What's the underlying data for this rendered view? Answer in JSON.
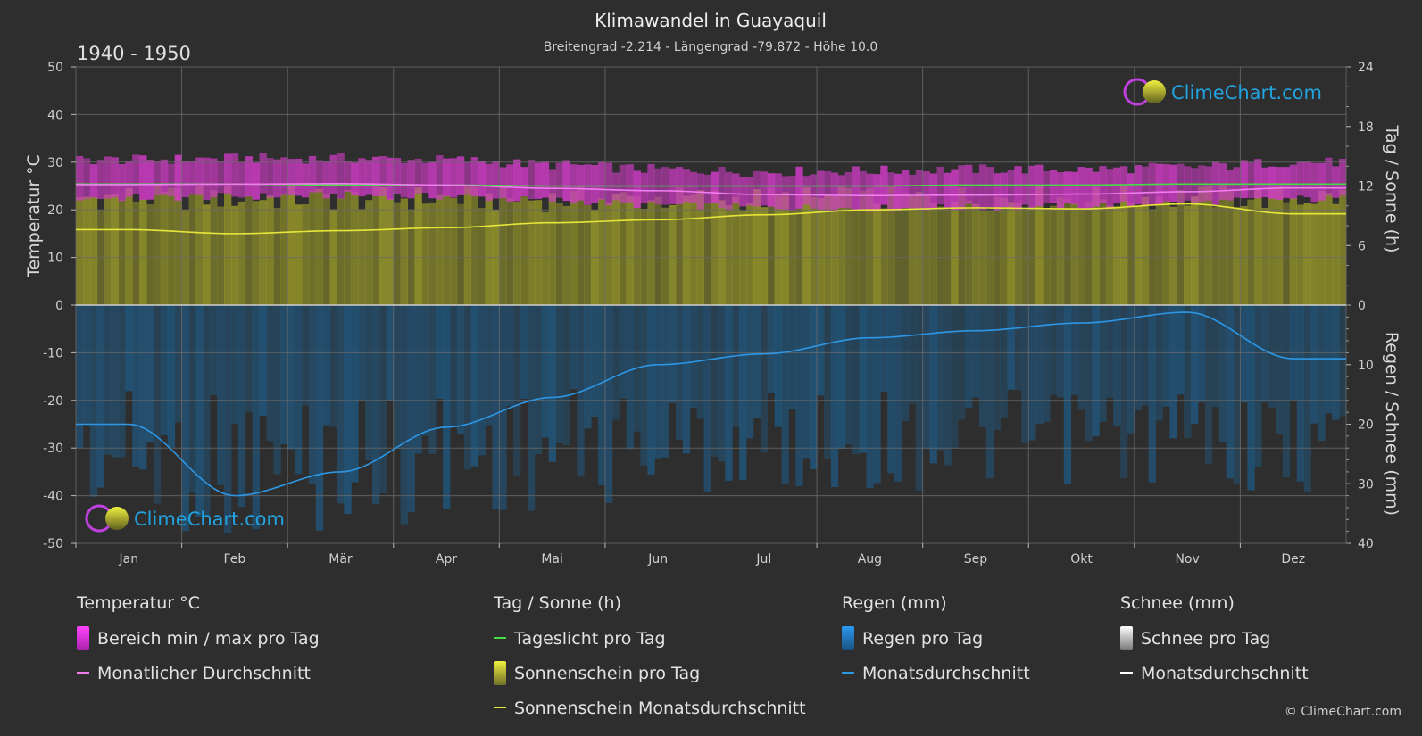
{
  "header": {
    "title": "Klimawandel in Guayaquil",
    "subtitle": "Breitengrad -2.214 - Längengrad -79.872 - Höhe 10.0",
    "period": "1940 - 1950"
  },
  "logo": {
    "text": "ClimeChart.com"
  },
  "copyright": "© ClimeChart.com",
  "colors": {
    "background": "#2e2e2e",
    "temp_range": "#d23cc8",
    "temp_avg": "#f07cf0",
    "daylight": "#44dd44",
    "sunshine_fill": "#a0a02a",
    "sunshine_avg": "#e6e63a",
    "rain_fill": "#1e5f8e",
    "rain_avg": "#2d97e6",
    "snow_avg": "#ffffff",
    "logo": "#22a3e0"
  },
  "chart_data": {
    "type": "line",
    "categories": [
      "Jan",
      "Feb",
      "Mär",
      "Apr",
      "Mai",
      "Jun",
      "Jul",
      "Aug",
      "Sep",
      "Okt",
      "Nov",
      "Dez"
    ],
    "axes": {
      "left": {
        "label": "Temperatur °C",
        "min": -50,
        "max": 50,
        "ticks": [
          "50",
          "40",
          "30",
          "20",
          "10",
          "0",
          "-10",
          "-20",
          "-30",
          "-40",
          "-50"
        ]
      },
      "right_top": {
        "label": "Tag / Sonne (h)",
        "min": 0,
        "max": 24,
        "ticks": [
          "24",
          "18",
          "12",
          "6",
          "0"
        ]
      },
      "right_bottom": {
        "label": "Regen / Schnee (mm)",
        "min": 0,
        "max": 40,
        "ticks": [
          "0",
          "10",
          "20",
          "30",
          "40"
        ]
      }
    },
    "grid": true,
    "series": [
      {
        "name": "Bereich min / max pro Tag",
        "axis": "left",
        "kind": "band",
        "min": [
          22.5,
          22.8,
          23.0,
          22.8,
          22.0,
          21.0,
          20.5,
          20.3,
          20.5,
          20.8,
          21.5,
          22.3
        ],
        "max": [
          30.5,
          30.8,
          30.8,
          30.5,
          29.5,
          28.5,
          28.0,
          28.2,
          28.5,
          28.5,
          29.0,
          30.0
        ]
      },
      {
        "name": "Monatlicher Durchschnitt",
        "axis": "left",
        "kind": "line",
        "values": [
          25.3,
          25.4,
          25.5,
          25.2,
          24.5,
          24.0,
          23.2,
          23.0,
          23.1,
          23.3,
          23.8,
          24.6
        ]
      },
      {
        "name": "Tageslicht pro Tag",
        "axis": "right_top",
        "kind": "line",
        "values": [
          12.2,
          12.2,
          12.1,
          12.1,
          12.0,
          12.0,
          12.0,
          12.0,
          12.1,
          12.1,
          12.2,
          12.2
        ]
      },
      {
        "name": "Sonnenschein Monatsdurchschnitt",
        "axis": "right_top",
        "kind": "line",
        "values": [
          7.6,
          7.2,
          7.5,
          7.8,
          8.3,
          8.6,
          9.1,
          9.6,
          9.8,
          9.7,
          10.2,
          9.2
        ]
      },
      {
        "name": "Regen Monatsdurchschnitt",
        "axis": "right_bottom",
        "kind": "line",
        "values": [
          20.0,
          32.0,
          28.0,
          20.5,
          15.5,
          10.0,
          8.2,
          5.5,
          4.3,
          3.0,
          1.2,
          9.0
        ]
      },
      {
        "name": "Schnee Monatsdurchschnitt",
        "axis": "right_bottom",
        "kind": "line",
        "values": [
          0,
          0,
          0,
          0,
          0,
          0,
          0,
          0,
          0,
          0,
          0,
          0
        ]
      }
    ]
  },
  "legend": {
    "temperature": {
      "heading": "Temperatur °C",
      "items": [
        "Bereich min / max pro Tag",
        "Monatlicher Durchschnitt"
      ]
    },
    "sun": {
      "heading": "Tag / Sonne (h)",
      "items": [
        "Tageslicht pro Tag",
        "Sonnenschein pro Tag",
        "Sonnenschein Monatsdurchschnitt"
      ]
    },
    "rain": {
      "heading": "Regen (mm)",
      "items": [
        "Regen pro Tag",
        "Monatsdurchschnitt"
      ]
    },
    "snow": {
      "heading": "Schnee (mm)",
      "items": [
        "Schnee pro Tag",
        "Monatsdurchschnitt"
      ]
    }
  }
}
